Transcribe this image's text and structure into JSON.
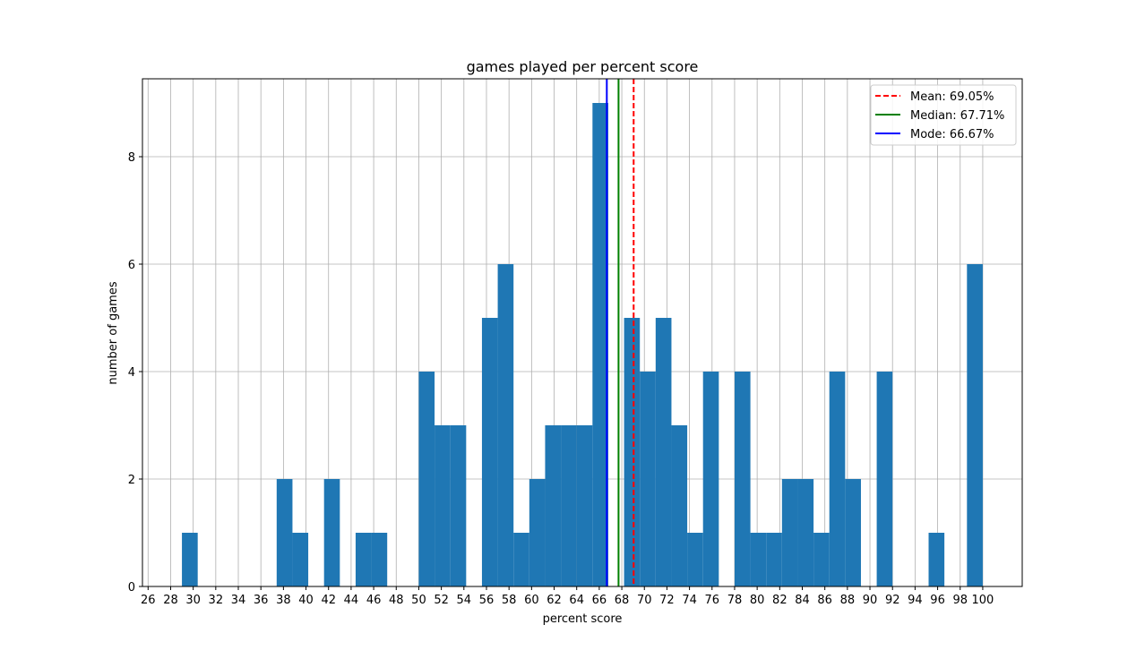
{
  "chart_data": {
    "type": "bar",
    "title": "games played per percent score",
    "xlabel": "percent score",
    "ylabel": "number of games",
    "xlim": [
      25.5,
      103.5
    ],
    "ylim": [
      0,
      9.45
    ],
    "bin_width": 1.4,
    "x_ticks": [
      26,
      28,
      30,
      32,
      34,
      36,
      38,
      40,
      42,
      44,
      46,
      48,
      50,
      52,
      54,
      56,
      58,
      60,
      62,
      64,
      66,
      68,
      70,
      72,
      74,
      76,
      78,
      80,
      82,
      84,
      86,
      88,
      90,
      92,
      94,
      96,
      98,
      100
    ],
    "y_ticks": [
      0,
      2,
      4,
      6,
      8
    ],
    "grid": true,
    "bar_color": "#1f77b4",
    "bars": [
      {
        "x": 29.0,
        "value": 1
      },
      {
        "x": 37.4,
        "value": 2
      },
      {
        "x": 38.8,
        "value": 1
      },
      {
        "x": 41.6,
        "value": 2
      },
      {
        "x": 44.4,
        "value": 1
      },
      {
        "x": 45.8,
        "value": 1
      },
      {
        "x": 50.0,
        "value": 4
      },
      {
        "x": 51.4,
        "value": 3
      },
      {
        "x": 52.8,
        "value": 3
      },
      {
        "x": 55.6,
        "value": 5
      },
      {
        "x": 57.0,
        "value": 6
      },
      {
        "x": 58.4,
        "value": 1
      },
      {
        "x": 59.8,
        "value": 2
      },
      {
        "x": 61.2,
        "value": 3
      },
      {
        "x": 62.6,
        "value": 3
      },
      {
        "x": 64.0,
        "value": 3
      },
      {
        "x": 65.4,
        "value": 9
      },
      {
        "x": 66.8,
        "value": 0
      },
      {
        "x": 68.2,
        "value": 5
      },
      {
        "x": 69.6,
        "value": 4
      },
      {
        "x": 71.0,
        "value": 5
      },
      {
        "x": 72.4,
        "value": 3
      },
      {
        "x": 73.8,
        "value": 1
      },
      {
        "x": 75.2,
        "value": 4
      },
      {
        "x": 78.0,
        "value": 4
      },
      {
        "x": 79.4,
        "value": 1
      },
      {
        "x": 80.8,
        "value": 1
      },
      {
        "x": 82.2,
        "value": 2
      },
      {
        "x": 83.6,
        "value": 2
      },
      {
        "x": 85.0,
        "value": 1
      },
      {
        "x": 86.4,
        "value": 4
      },
      {
        "x": 87.8,
        "value": 2
      },
      {
        "x": 90.6,
        "value": 4
      },
      {
        "x": 95.2,
        "value": 1
      },
      {
        "x": 98.6,
        "value": 6
      }
    ],
    "vlines": [
      {
        "name": "Mean: 69.05%",
        "x": 69.05,
        "color": "#ff0000",
        "dash": true
      },
      {
        "name": "Median: 67.71%",
        "x": 67.71,
        "color": "#008000",
        "dash": false
      },
      {
        "name": "Mode: 66.67%",
        "x": 66.67,
        "color": "#0000ff",
        "dash": false
      }
    ],
    "legend_position": "top-right"
  }
}
